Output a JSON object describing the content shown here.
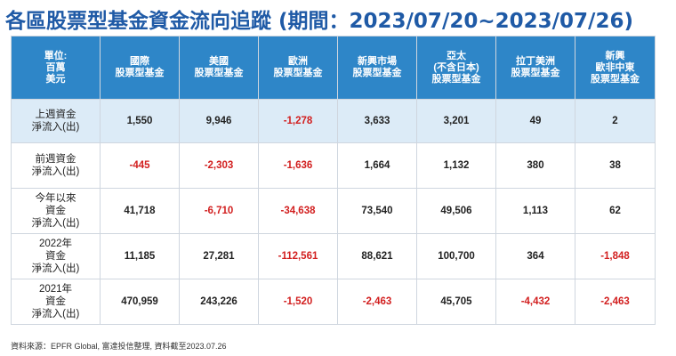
{
  "title": "各區股票型基金資金流向追蹤 (期間：2023/07/20~2023/07/26)",
  "accent_color": "#2e86c8",
  "negative_color": "#d21f1f",
  "highlight_row_color": "#dcebf7",
  "table": {
    "headers": [
      [
        "單位:",
        "百萬",
        "美元"
      ],
      [
        "國際",
        "股票型基金"
      ],
      [
        "美國",
        "股票型基金"
      ],
      [
        "歐洲",
        "股票型基金"
      ],
      [
        "新興市場",
        "股票型基金"
      ],
      [
        "亞太",
        "(不含日本)",
        "股票型基金"
      ],
      [
        "拉丁美洲",
        "股票型基金"
      ],
      [
        "新興",
        "歐非中東",
        "股票型基金"
      ]
    ],
    "rows": [
      {
        "label": [
          "上週資金",
          "淨流入(出)"
        ],
        "values": [
          "1,550",
          "9,946",
          "-1,278",
          "3,633",
          "3,201",
          "49",
          "2"
        ]
      },
      {
        "label": [
          "前週資金",
          "淨流入(出)"
        ],
        "values": [
          "-445",
          "-2,303",
          "-1,636",
          "1,664",
          "1,132",
          "380",
          "38"
        ]
      },
      {
        "label": [
          "今年以來",
          "資金",
          "淨流入(出)"
        ],
        "values": [
          "41,718",
          "-6,710",
          "-34,638",
          "73,540",
          "49,506",
          "1,113",
          "62"
        ]
      },
      {
        "label": [
          "2022年",
          "資金",
          "淨流入(出)"
        ],
        "values": [
          "11,185",
          "27,281",
          "-112,561",
          "88,621",
          "100,700",
          "364",
          "-1,848"
        ]
      },
      {
        "label": [
          "2021年",
          "資金",
          "淨流入(出)"
        ],
        "values": [
          "470,959",
          "243,226",
          "-1,520",
          "-2,463",
          "45,705",
          "-4,432",
          "-2,463"
        ]
      }
    ]
  },
  "source": "資料來源：EPFR Global, 富達投信整理, 資料截至2023.07.26"
}
